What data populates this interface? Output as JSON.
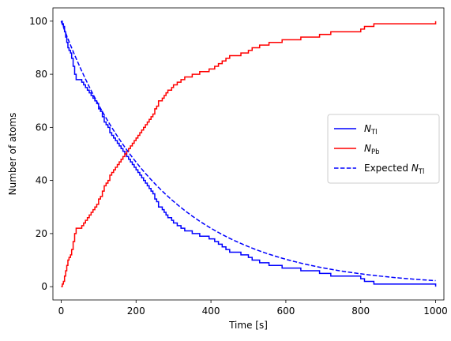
{
  "chart_data": {
    "type": "line",
    "title": "",
    "xlabel": "Time [s]",
    "ylabel": "Number of atoms",
    "xlim": [
      -22,
      1022
    ],
    "ylim": [
      -5,
      105
    ],
    "xticks": [
      0,
      200,
      400,
      600,
      800,
      1000
    ],
    "yticks": [
      0,
      20,
      40,
      60,
      80,
      100
    ],
    "grid": false,
    "legend_position": "center-right",
    "series": [
      {
        "name": "N_Tl",
        "label_main": "N",
        "label_sub": "Tl",
        "color": "#0000ff",
        "style": "solid",
        "step": true,
        "x": [
          0,
          3,
          6,
          9,
          12,
          15,
          18,
          21,
          25,
          28,
          32,
          36,
          40,
          45,
          50,
          55,
          60,
          65,
          70,
          75,
          80,
          85,
          90,
          95,
          100,
          105,
          110,
          115,
          120,
          125,
          130,
          135,
          140,
          145,
          150,
          155,
          160,
          165,
          170,
          175,
          180,
          185,
          190,
          195,
          200,
          205,
          210,
          215,
          220,
          225,
          230,
          235,
          240,
          245,
          250,
          255,
          260,
          265,
          270,
          275,
          280,
          285,
          290,
          295,
          300,
          310,
          320,
          330,
          340,
          350,
          360,
          370,
          380,
          390,
          395,
          410,
          420,
          430,
          440,
          450,
          460,
          480,
          500,
          510,
          530,
          555,
          570,
          590,
          640,
          660,
          690,
          720,
          760,
          800,
          810,
          835,
          1000
        ],
        "y": [
          100,
          99,
          98,
          96,
          94,
          92,
          90,
          89,
          88,
          86,
          83,
          80,
          78,
          78,
          78,
          77,
          76,
          75,
          74,
          73,
          72,
          71,
          70,
          69,
          67,
          66,
          64,
          62,
          61,
          60,
          58,
          57,
          56,
          55,
          54,
          53,
          52,
          51,
          50,
          49,
          48,
          47,
          46,
          45,
          44,
          43,
          42,
          41,
          40,
          39,
          38,
          37,
          36,
          35,
          33,
          32,
          30,
          30,
          29,
          28,
          27,
          26,
          26,
          25,
          24,
          23,
          22,
          21,
          21,
          20,
          20,
          19,
          19,
          19,
          18,
          17,
          16,
          15,
          14,
          13,
          13,
          12,
          11,
          10,
          9,
          8,
          8,
          7,
          6,
          6,
          5,
          4,
          4,
          3,
          2,
          1,
          0
        ]
      },
      {
        "name": "N_Pb",
        "label_main": "N",
        "label_sub": "Pb",
        "color": "#ff0000",
        "style": "solid",
        "step": true,
        "x": [
          0,
          3,
          6,
          9,
          12,
          15,
          18,
          21,
          25,
          28,
          32,
          36,
          40,
          45,
          50,
          55,
          60,
          65,
          70,
          75,
          80,
          85,
          90,
          95,
          100,
          105,
          110,
          115,
          120,
          125,
          130,
          135,
          140,
          145,
          150,
          155,
          160,
          165,
          170,
          175,
          180,
          185,
          190,
          195,
          200,
          205,
          210,
          215,
          220,
          225,
          230,
          235,
          240,
          245,
          250,
          255,
          260,
          265,
          270,
          275,
          280,
          285,
          290,
          295,
          300,
          310,
          320,
          330,
          340,
          350,
          360,
          370,
          380,
          390,
          395,
          410,
          420,
          430,
          440,
          450,
          460,
          480,
          500,
          510,
          530,
          555,
          570,
          590,
          640,
          660,
          690,
          720,
          760,
          800,
          810,
          835,
          1000
        ],
        "y": [
          0,
          1,
          2,
          4,
          6,
          8,
          10,
          11,
          12,
          14,
          17,
          20,
          22,
          22,
          22,
          23,
          24,
          25,
          26,
          27,
          28,
          29,
          30,
          31,
          33,
          34,
          36,
          38,
          39,
          40,
          42,
          43,
          44,
          45,
          46,
          47,
          48,
          49,
          50,
          51,
          52,
          53,
          54,
          55,
          56,
          57,
          58,
          59,
          60,
          61,
          62,
          63,
          64,
          65,
          67,
          68,
          70,
          70,
          71,
          72,
          73,
          74,
          74,
          75,
          76,
          77,
          78,
          79,
          79,
          80,
          80,
          81,
          81,
          81,
          82,
          83,
          84,
          85,
          86,
          87,
          87,
          88,
          89,
          90,
          91,
          92,
          92,
          93,
          94,
          94,
          95,
          96,
          96,
          97,
          98,
          99,
          100
        ]
      },
      {
        "name": "Expected N_Tl",
        "label_prefix": "Expected ",
        "label_main": "N",
        "label_sub": "Tl",
        "color": "#0000ff",
        "style": "dashed",
        "curve": "exponential",
        "start": 100,
        "half_life": 183.2,
        "x_end": 1000
      }
    ]
  }
}
